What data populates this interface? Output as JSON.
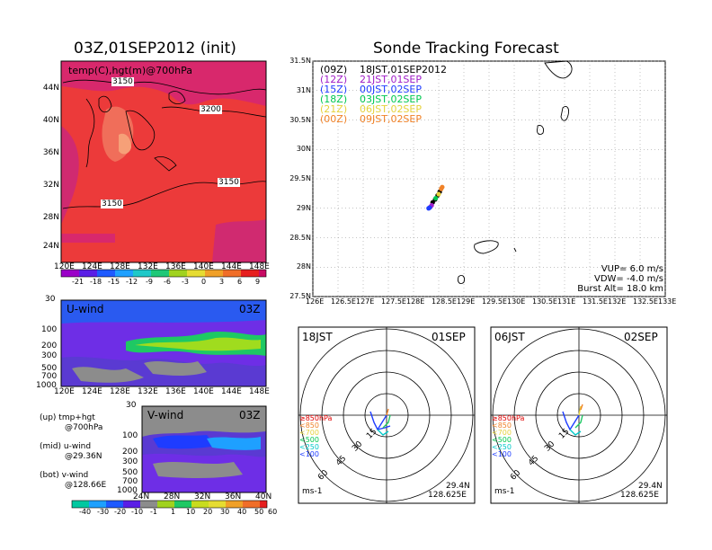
{
  "titles": {
    "left": "03Z,01SEP2012 (init)",
    "right": "Sonde Tracking Forecast"
  },
  "map_left": {
    "label": "temp(C),hgt(m)@700hPa",
    "x_ticks": [
      "120E",
      "124E",
      "128E",
      "132E",
      "136E",
      "140E",
      "144E",
      "148E"
    ],
    "y_ticks": [
      "44N",
      "40N",
      "36N",
      "32N",
      "28N",
      "24N"
    ],
    "contour_labels": [
      "3150",
      "3200",
      "3150",
      "3150"
    ],
    "colorbar": [
      "-21",
      "-18",
      "-15",
      "-12",
      "-9",
      "-6",
      "-3",
      "0",
      "3",
      "6",
      "9"
    ]
  },
  "uwind": {
    "label": "U-wind",
    "time": "03Z",
    "y_ticks": [
      "30",
      "100",
      "200",
      "300",
      "500",
      "700",
      "1000"
    ],
    "x_ticks": [
      "120E",
      "124E",
      "128E",
      "132E",
      "136E",
      "140E",
      "144E",
      "148E"
    ]
  },
  "vwind": {
    "label": "V-wind",
    "time": "03Z",
    "y_ticks": [
      "30",
      "100",
      "200",
      "300",
      "500",
      "700",
      "1000"
    ],
    "x_ticks": [
      "24N",
      "28N",
      "32N",
      "36N",
      "40N"
    ]
  },
  "wind_colorbar": [
    "-40",
    "-30",
    "-20",
    "-10",
    "-1",
    "1",
    "10",
    "20",
    "30",
    "40",
    "50",
    "60"
  ],
  "legend_notes": [
    {
      "a": "(up)  tmp+hgt",
      "b": "@700hPa"
    },
    {
      "a": "(mid)  u-wind",
      "b": "@29.36N"
    },
    {
      "a": "(bot)  v-wind",
      "b": "@128.66E"
    }
  ],
  "track_map": {
    "x_ticks": [
      "126E",
      "126.5E",
      "127E",
      "127.5E",
      "128E",
      "128.5E",
      "129E",
      "129.5E",
      "130E",
      "130.5E",
      "131E",
      "131.5E",
      "132E",
      "132.5E",
      "133E"
    ],
    "y_ticks": [
      "31.5N",
      "31N",
      "30.5N",
      "30N",
      "29.5N",
      "29N",
      "28.5N",
      "28N",
      "27.5N"
    ],
    "legend": [
      {
        "code": "(09Z)",
        "time": "18JST,01SEP2012",
        "color": "#000000"
      },
      {
        "code": "(12Z)",
        "time": "21JST,01SEP",
        "color": "#a01ec8"
      },
      {
        "code": "(15Z)",
        "time": "00JST,02SEP",
        "color": "#1e3cff"
      },
      {
        "code": "(18Z)",
        "time": "03JST,02SEP",
        "color": "#00c850"
      },
      {
        "code": "(21Z)",
        "time": "06JST,02SEP",
        "color": "#e6d23c"
      },
      {
        "code": "(00Z)",
        "time": "09JST,02SEP",
        "color": "#f08228"
      }
    ],
    "params": [
      "VUP=  6.0  m/s",
      "VDW=  -4.0  m/s",
      "Burst Alt=  18.0  km"
    ]
  },
  "chart_data": {
    "type": "scatter",
    "title": "Sonde Tracking Forecast",
    "xlim": [
      126,
      133
    ],
    "ylim": [
      27.5,
      31.5
    ],
    "series": [
      {
        "name": "18JST,01SEP2012",
        "color": "#000000",
        "points": [
          [
            128.38,
            29.1
          ],
          [
            128.43,
            29.15
          ],
          [
            128.48,
            29.22
          ],
          [
            128.52,
            29.28
          ]
        ]
      },
      {
        "name": "21JST,01SEP",
        "color": "#a01ec8",
        "points": [
          [
            128.33,
            29.02
          ],
          [
            128.36,
            29.05
          ]
        ]
      },
      {
        "name": "00JST,02SEP",
        "color": "#1e3cff",
        "points": [
          [
            128.3,
            29.0
          ],
          [
            128.32,
            29.01
          ]
        ]
      },
      {
        "name": "03JST,02SEP",
        "color": "#00c850",
        "points": [
          [
            128.44,
            29.17
          ]
        ]
      },
      {
        "name": "06JST,02SEP",
        "color": "#e6d23c",
        "points": [
          [
            128.5,
            29.24
          ]
        ]
      },
      {
        "name": "09JST,02SEP",
        "color": "#f08228",
        "points": [
          [
            128.55,
            29.33
          ],
          [
            128.57,
            29.36
          ]
        ]
      }
    ]
  },
  "hodo_left": {
    "time": "18JST",
    "date": "01SEP",
    "rings": [
      "15",
      "30",
      "45",
      "60"
    ],
    "levels": [
      {
        "text": "≥850hPa",
        "color": "#e00000"
      },
      {
        "text": "<850",
        "color": "#f08228"
      },
      {
        "text": "<700",
        "color": "#e6d23c"
      },
      {
        "text": "<500",
        "color": "#00c850"
      },
      {
        "text": "<250",
        "color": "#00c8c8"
      },
      {
        "text": "<100",
        "color": "#1e3cff"
      }
    ],
    "unit": "ms-1",
    "lat": "29.4N",
    "lon": "128.625E"
  },
  "hodo_right": {
    "time": "06JST",
    "date": "02SEP",
    "rings": [
      "15",
      "30",
      "45",
      "60"
    ],
    "levels": [
      {
        "text": "≥850hPa",
        "color": "#e00000"
      },
      {
        "text": "<850",
        "color": "#f08228"
      },
      {
        "text": "<700",
        "color": "#e6d23c"
      },
      {
        "text": "<500",
        "color": "#00c850"
      },
      {
        "text": "<250",
        "color": "#00c8c8"
      },
      {
        "text": "<100",
        "color": "#1e3cff"
      }
    ],
    "unit": "ms-1",
    "lat": "29.4N",
    "lon": "128.625E"
  }
}
